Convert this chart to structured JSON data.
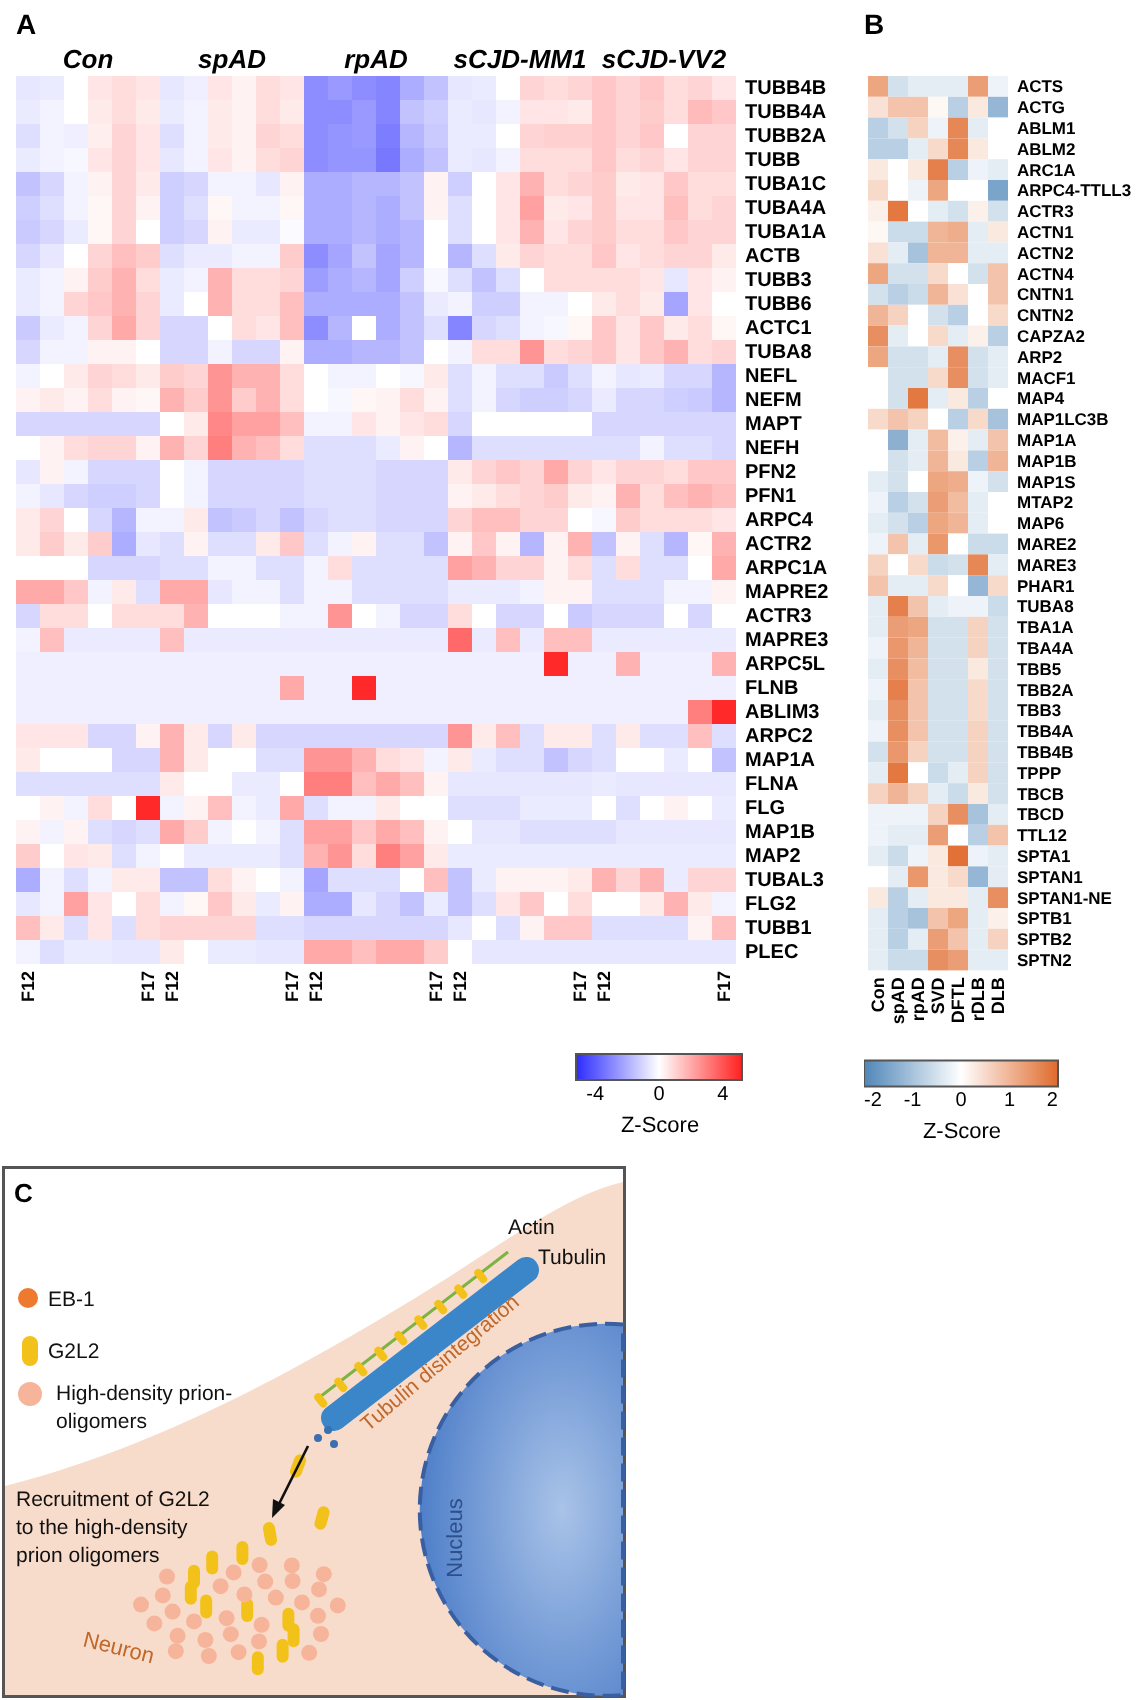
{
  "chart_data": [
    {
      "type": "heatmap",
      "title": "A",
      "annotations": [
        "Con",
        "spAD",
        "rpAD",
        "sCJD-MM1",
        "sCJD-VV2"
      ],
      "categories": [
        "F12",
        null,
        null,
        null,
        null,
        "F17",
        "F12",
        null,
        null,
        null,
        null,
        "F17",
        "F12",
        null,
        null,
        null,
        null,
        "F17",
        "F12",
        null,
        null,
        null,
        null,
        "F17",
        "F12",
        null,
        null,
        null,
        null,
        "F17"
      ],
      "clim": [
        -5.2,
        5.2
      ],
      "clabel": "Z-Score",
      "cticks": [
        -4,
        0,
        4
      ],
      "y_categories": [
        "TUBB4B",
        "TUBB4A",
        "TUBB2A",
        "TUBB",
        "TUBA1C",
        "TUBA4A",
        "TUBA1A",
        "ACTB",
        "TUBB3",
        "TUBB6",
        "ACTC1",
        "TUBA8",
        "NEFL",
        "NEFM",
        "MAPT",
        "NEFH",
        "PFN2",
        "PFN1",
        "ARPC4",
        "ACTR2",
        "ARPC1A",
        "MAPRE2",
        "ACTR3",
        "MAPRE3",
        "ARPC5L",
        "FLNB",
        "ABLIM3",
        "ARPC2",
        "MAP1A",
        "FLNA",
        "FLG",
        "MAP1B",
        "MAP2",
        "TUBAL3",
        "FLG2",
        "TUBB1",
        "PLEC"
      ],
      "cells": [
        [
          -0.6,
          -0.5,
          0,
          0.6,
          0.8,
          0.6,
          -0.6,
          -0.4,
          0.6,
          0.3,
          0.8,
          0.6,
          -2.8,
          -2.5,
          -2.8,
          -3,
          -2,
          -1.5,
          -0.6,
          -0.5,
          0,
          1,
          0.8,
          1,
          1.3,
          1,
          1.3,
          0.8,
          1,
          0.6
        ],
        [
          -0.5,
          -0.3,
          0,
          0.5,
          0.8,
          0.5,
          -0.5,
          -0.3,
          0.5,
          0.3,
          0.8,
          0.5,
          -2.8,
          -2.8,
          -2.5,
          -3,
          -1.5,
          -1.2,
          -0.5,
          -0.6,
          -0.3,
          0.6,
          0.6,
          0.5,
          1.3,
          1,
          1.2,
          0.8,
          1.6,
          1.3
        ],
        [
          -0.8,
          -0.3,
          -0.4,
          0.4,
          1,
          0.6,
          -0.8,
          -0.3,
          0.5,
          0.3,
          1,
          0.8,
          -2.8,
          -2.6,
          -2.5,
          -3.2,
          -1.8,
          -1.3,
          -0.5,
          -0.5,
          0,
          1,
          1.1,
          1.1,
          1.3,
          1,
          1.3,
          0,
          1,
          1
        ],
        [
          -0.5,
          -0.3,
          -0.2,
          0.6,
          1,
          0.6,
          -0.6,
          -0.3,
          0.6,
          0.3,
          0.8,
          1,
          -2.8,
          -2.6,
          -2.6,
          -3.3,
          -2,
          -1.5,
          -0.5,
          -0.6,
          -0.3,
          0.8,
          0.8,
          0.8,
          1.3,
          0.8,
          1,
          0.6,
          1,
          1
        ],
        [
          -1.5,
          -1,
          -0.3,
          0.3,
          1,
          0.5,
          -1.2,
          -1,
          -0.3,
          -0.3,
          -0.6,
          0.3,
          -2,
          -2,
          -1.8,
          -1.8,
          -1.5,
          0.3,
          -1.2,
          0,
          0.6,
          1.8,
          0.8,
          1,
          1.2,
          0.5,
          0.6,
          1.3,
          0.8,
          0.8
        ],
        [
          -1.2,
          -0.8,
          -0.3,
          0.2,
          1,
          0.3,
          -1.2,
          -0.8,
          0.2,
          -0.3,
          -0.3,
          0.2,
          -2,
          -2,
          -1.8,
          -2,
          -1.5,
          0.3,
          -0.8,
          0,
          0.6,
          2.2,
          0.5,
          0.6,
          1.2,
          0.6,
          0.6,
          1.5,
          0.8,
          1
        ],
        [
          -1.3,
          -1,
          -0.5,
          0.2,
          1,
          0,
          -1.2,
          -1,
          0.3,
          -0.5,
          -0.5,
          -0.1,
          -2,
          -2,
          -1.8,
          -2,
          -1.8,
          0,
          -0.8,
          0,
          0.6,
          1.8,
          0.6,
          1,
          1.2,
          0.8,
          0.8,
          1.3,
          1,
          1
        ],
        [
          -1,
          -0.6,
          0,
          1,
          1.5,
          1.2,
          -0.8,
          -0.5,
          -0.5,
          -0.3,
          -0.3,
          1.2,
          -2.8,
          -2.2,
          -1.5,
          -2.2,
          -1.8,
          0,
          -1.8,
          -0.8,
          0.5,
          1,
          0.8,
          0.8,
          1.3,
          0.6,
          0.8,
          1,
          1,
          0.5
        ],
        [
          -0.5,
          -0.3,
          0.3,
          1.2,
          1.8,
          0.8,
          -0.5,
          -0.3,
          1.8,
          0.8,
          0.8,
          1,
          -2.4,
          -2,
          -1.8,
          -2.2,
          -1.2,
          -0.2,
          -0.8,
          -1.5,
          -0.8,
          0,
          0.8,
          0.8,
          0.8,
          0.8,
          0.6,
          -0.6,
          0.6,
          0.3
        ],
        [
          -0.5,
          -0.3,
          1,
          1.3,
          1.8,
          1,
          -0.5,
          0,
          1.8,
          0.8,
          0.8,
          1.5,
          -2,
          -2,
          -2,
          -2,
          -1.5,
          -0.5,
          -0.3,
          -1.2,
          -1.2,
          -0.3,
          -0.3,
          0,
          0.5,
          0.8,
          0.5,
          -2.2,
          0.6,
          0
        ],
        [
          -1.3,
          -0.5,
          -0.3,
          1,
          2,
          1,
          -1,
          -1,
          0,
          0.8,
          0.6,
          1.5,
          -2.8,
          -1.8,
          0,
          -2,
          -1.5,
          -0.8,
          -3,
          -1,
          -0.8,
          -0.3,
          -0.2,
          0.2,
          1.3,
          0.6,
          1.3,
          0.5,
          0.8,
          0.2
        ],
        [
          -1,
          -0.3,
          -0.3,
          0.3,
          0.3,
          0,
          -1,
          -1,
          -0.3,
          -1,
          -1,
          0.3,
          -2,
          -2,
          -1.8,
          -1.8,
          -1.5,
          0,
          -0.3,
          0.8,
          0.8,
          2.5,
          0.8,
          1,
          1.3,
          0.6,
          1.3,
          1.8,
          0.8,
          1
        ],
        [
          -0.3,
          0,
          0.5,
          1,
          0.8,
          0.5,
          1.2,
          1,
          2.5,
          1.8,
          1.8,
          0.8,
          0,
          -0.3,
          -0.3,
          0,
          -0.2,
          0.5,
          -0.8,
          -0.3,
          -0.8,
          -0.8,
          -1.3,
          -0.8,
          -0.3,
          -0.6,
          -0.5,
          -1,
          -1,
          -1.8
        ],
        [
          0.3,
          0.5,
          0.3,
          0.8,
          0.3,
          0.2,
          1.8,
          1.2,
          2.5,
          1.2,
          1.8,
          0.8,
          0,
          -0.2,
          0.2,
          0.3,
          0.8,
          0.3,
          -0.8,
          -0.3,
          -1,
          -1.2,
          -1.2,
          -1,
          -0.5,
          -1,
          -1,
          -1.2,
          -1.3,
          -1.8
        ],
        [
          -1,
          -1,
          -1,
          -1,
          -1,
          -1,
          0,
          0.5,
          2.8,
          2.2,
          2.2,
          1.5,
          -0.3,
          -0.3,
          0.6,
          0.3,
          0.6,
          0.8,
          -1,
          0,
          0,
          0,
          0,
          0,
          -1,
          -1,
          -1,
          -1,
          -1,
          -1
        ],
        [
          0,
          0.3,
          0.8,
          1,
          1,
          0.3,
          1.8,
          1,
          3,
          1.8,
          1.5,
          0.8,
          -0.8,
          -0.8,
          -0.8,
          -0.5,
          0.3,
          0,
          -1.8,
          -0.8,
          -0.8,
          -0.8,
          -0.8,
          -0.8,
          -0.8,
          -0.8,
          -0.3,
          -0.8,
          -0.8,
          -1
        ],
        [
          -0.6,
          0.3,
          -0.3,
          -1,
          -1,
          -1,
          0,
          -0.3,
          -1,
          -1,
          -1,
          -1,
          -0.8,
          -0.8,
          -0.8,
          -1,
          -1,
          -1,
          0.5,
          1,
          1.3,
          1,
          2,
          1,
          0.6,
          1,
          1,
          0.8,
          1.3,
          1.3
        ],
        [
          -0.3,
          -0.6,
          -1,
          -1.2,
          -1.2,
          -1,
          0,
          -0.3,
          -1,
          -1,
          -1,
          -1,
          -0.8,
          -0.8,
          -0.8,
          -1,
          -1,
          -1,
          0.3,
          0.5,
          0.8,
          1,
          1.2,
          0.5,
          0.3,
          1.8,
          0.8,
          1.5,
          1.8,
          1.5
        ],
        [
          0.5,
          1,
          0,
          -1,
          -1.8,
          -0.3,
          -0.3,
          0.5,
          -1.5,
          -1.3,
          -1,
          -1.5,
          -1,
          -0.8,
          -0.8,
          -1,
          -1,
          -1,
          1,
          1.5,
          1.5,
          1,
          1,
          0,
          -0.2,
          1.2,
          0.8,
          0.8,
          0.8,
          0.6
        ],
        [
          0.5,
          1.2,
          0.5,
          1.2,
          -2,
          -0.6,
          -0.8,
          0.3,
          -0.8,
          -0.8,
          0.5,
          1.3,
          -0.8,
          -0.3,
          0.3,
          -0.8,
          -0.8,
          -1.5,
          0.3,
          1.3,
          0.3,
          -1.8,
          0.3,
          1.8,
          -1.5,
          0.3,
          -0.8,
          -1.8,
          0.2,
          1.8
        ],
        [
          0,
          0,
          0,
          -1,
          -1,
          -1,
          -0.8,
          -0.8,
          -0.3,
          -0.3,
          -0.8,
          -0.8,
          -0.3,
          0.8,
          -0.8,
          -0.8,
          -0.8,
          -0.8,
          2.2,
          1.8,
          1,
          1,
          0.3,
          0.8,
          -0.8,
          0.8,
          -0.8,
          -0.8,
          0,
          2
        ],
        [
          2,
          2,
          1.3,
          -0.3,
          0.5,
          -0.8,
          2,
          2,
          -0.6,
          -0.3,
          -0.3,
          -0.8,
          -0.3,
          -0.3,
          -0.8,
          -0.8,
          -0.8,
          -0.8,
          -0.5,
          -0.5,
          -0.5,
          -0.3,
          0.3,
          0.3,
          -0.8,
          -0.8,
          -0.8,
          -0.3,
          -0.3,
          0.3
        ],
        [
          -1,
          0.8,
          0.8,
          0,
          0.8,
          0.8,
          0.8,
          1.8,
          0,
          0,
          0,
          -0.3,
          -0.3,
          2.5,
          0,
          -0.3,
          -1,
          -1,
          0.8,
          0,
          -1,
          -1,
          0,
          -1.3,
          -1,
          -1,
          -1,
          0,
          -1,
          0
        ],
        [
          -0.3,
          1.5,
          -0.5,
          -0.5,
          -0.5,
          -0.5,
          1.5,
          -0.5,
          -0.5,
          -0.5,
          -0.5,
          -0.5,
          -0.5,
          -0.5,
          -0.5,
          -0.5,
          -0.5,
          -0.5,
          3.5,
          -0.5,
          1.5,
          -0.5,
          1.5,
          1.5,
          -0.5,
          -0.5,
          -0.5,
          -0.5,
          -0.5,
          -0.5
        ],
        [
          -0.4,
          -0.4,
          -0.4,
          -0.4,
          -0.4,
          -0.4,
          -0.4,
          -0.4,
          -0.4,
          -0.4,
          -0.4,
          -0.4,
          -0.4,
          -0.4,
          -0.4,
          -0.4,
          -0.4,
          -0.4,
          -0.4,
          -0.4,
          -0.4,
          -0.4,
          5,
          -0.4,
          -0.4,
          1.8,
          -0.4,
          -0.4,
          -0.4,
          1.8
        ],
        [
          -0.4,
          -0.4,
          -0.4,
          -0.4,
          -0.4,
          -0.4,
          -0.4,
          -0.4,
          -0.4,
          -0.4,
          -0.4,
          2,
          -0.4,
          -0.4,
          5,
          -0.4,
          -0.4,
          -0.4,
          -0.4,
          -0.4,
          -0.4,
          -0.4,
          -0.4,
          -0.4,
          -0.4,
          -0.4,
          -0.4,
          -0.4,
          -0.4,
          -0.4
        ],
        [
          -0.4,
          -0.4,
          -0.4,
          -0.4,
          -0.4,
          -0.4,
          -0.4,
          -0.4,
          -0.4,
          -0.4,
          -0.4,
          -0.4,
          -0.4,
          -0.4,
          -0.4,
          -0.4,
          -0.4,
          -0.4,
          -0.4,
          -0.4,
          -0.4,
          -0.4,
          -0.4,
          -0.4,
          -0.4,
          -0.4,
          -0.4,
          -0.4,
          3,
          5
        ],
        [
          0.6,
          0.6,
          0.6,
          -1,
          -1,
          0.3,
          1.8,
          0.5,
          -1,
          0.5,
          -1,
          -1,
          -1,
          -1,
          -1,
          -1,
          -1,
          -1,
          2.5,
          0.5,
          1.5,
          -0.8,
          0.5,
          0.5,
          -0.8,
          0.5,
          -0.8,
          -0.8,
          1.5,
          -0.8
        ],
        [
          0.5,
          0,
          0,
          0,
          -1,
          -1,
          1.8,
          0.5,
          0,
          0,
          -0.8,
          -0.8,
          2.5,
          2.5,
          1.8,
          0.8,
          0.6,
          -0.3,
          0.5,
          -0.5,
          -0.8,
          -0.8,
          -1.5,
          -1,
          -0.8,
          0,
          0,
          -0.5,
          0,
          -1.5
        ],
        [
          -0.8,
          -0.8,
          -0.8,
          -0.8,
          -0.8,
          -0.8,
          0.5,
          0,
          0,
          -0.5,
          -0.5,
          0,
          3,
          3,
          1.5,
          2,
          1.5,
          0.3,
          -0.6,
          -0.6,
          -0.6,
          -0.6,
          -0.6,
          -0.6,
          -0.5,
          -0.6,
          -0.6,
          -0.6,
          -0.6,
          -0.6
        ],
        [
          0,
          0.3,
          -0.3,
          0.8,
          0,
          5,
          -0.3,
          0.3,
          1.5,
          -0.3,
          -0.5,
          2,
          -0.8,
          -0.3,
          -0.3,
          0.5,
          0,
          0,
          -0.8,
          -0.8,
          -0.8,
          -0.5,
          -0.5,
          -0.5,
          0,
          -0.8,
          0,
          0.3,
          0,
          -0.5
        ],
        [
          0.3,
          -0.3,
          0.3,
          -0.8,
          -1,
          -0.8,
          2,
          1.2,
          -0.3,
          0,
          -0.3,
          -0.8,
          2.2,
          2.2,
          1.3,
          2,
          1.5,
          0.3,
          0,
          -0.6,
          -0.6,
          -0.8,
          -0.8,
          -0.8,
          -0.8,
          -0.6,
          -0.6,
          -0.6,
          -0.6,
          -0.6
        ],
        [
          1.2,
          0,
          0.6,
          0.5,
          -0.8,
          -0.3,
          0,
          -0.5,
          -0.5,
          -0.5,
          -0.5,
          -0.8,
          1.8,
          2.5,
          0.8,
          3,
          2.2,
          0.5,
          -0.5,
          -0.5,
          -0.5,
          -0.5,
          -0.5,
          -0.5,
          -0.5,
          -0.5,
          -0.5,
          -0.5,
          -0.5,
          -0.5
        ],
        [
          -2,
          -0.3,
          -0.8,
          -0.3,
          0.5,
          0.5,
          -1.5,
          -1.5,
          0.8,
          0.3,
          0,
          -0.3,
          -2.2,
          -0.8,
          -0.8,
          -0.8,
          0,
          1.5,
          -1.5,
          -0.5,
          0.3,
          0.3,
          0.3,
          0.5,
          1.8,
          1,
          1.8,
          -0.5,
          1,
          1
        ],
        [
          -0.6,
          -0.3,
          2.2,
          0.6,
          0,
          0.8,
          -0.3,
          0.2,
          1.3,
          0.5,
          -0.5,
          0.3,
          -2,
          -2,
          -0.6,
          -1,
          -1.5,
          -0.5,
          -1.5,
          -0.8,
          0.6,
          1.3,
          0,
          0.8,
          0,
          0,
          0.5,
          1.8,
          0.5,
          -0.3
        ],
        [
          1.5,
          0.5,
          -0.8,
          0.6,
          -0.8,
          0.8,
          1,
          1,
          1,
          1,
          -0.8,
          -0.8,
          -1,
          -1,
          -1,
          -1,
          -1,
          -1,
          -0.6,
          0,
          -0.8,
          0.3,
          1.3,
          1.3,
          -0.8,
          -0.8,
          -0.8,
          -0.8,
          0.3,
          1.5
        ],
        [
          -0.3,
          -0.8,
          -0.5,
          -0.5,
          -0.6,
          -0.6,
          0.5,
          0,
          -0.5,
          -0.5,
          -0.6,
          -0.6,
          2,
          2,
          1.5,
          2,
          2,
          1.2,
          0,
          -0.6,
          -0.6,
          -0.6,
          -0.6,
          -0.6,
          -0.6,
          -0.6,
          -0.6,
          -0.6,
          -0.6,
          -0.6
        ]
      ]
    },
    {
      "type": "heatmap",
      "title": "B",
      "categories": [
        "Con",
        "spAD",
        "rpAD",
        "SVD",
        "DFTL",
        "rDLB",
        "DLB"
      ],
      "clim": [
        -2,
        2
      ],
      "clabel": "Z-Score",
      "cticks": [
        -2,
        -1,
        0,
        1,
        2
      ],
      "y_categories": [
        "ACTS",
        "ACTG",
        "ABLM1",
        "ABLM2",
        "ARC1A",
        "ARPC4-TTLL3",
        "ACTR3",
        "ACTN1",
        "ACTN2",
        "ACTN4",
        "CNTN1",
        "CNTN2",
        "CAPZA2",
        "ARP2",
        "MACF1",
        "MAP4",
        "MAP1LC3B",
        "MAP1A",
        "MAP1B",
        "MAP1S",
        "MTAP2",
        "MAP6",
        "MARE2",
        "MARE3",
        "PHAR1",
        "TUBA8",
        "TBA1A",
        "TBA4A",
        "TBB5",
        "TBB2A",
        "TBB3",
        "TBB4A",
        "TBB4B",
        "TPPP",
        "TBCB",
        "TBCD",
        "TTL12",
        "SPTA1",
        "SPTAN1",
        "SPTAN1-NE",
        "SPTB1",
        "SPTB2",
        "SPTN2"
      ],
      "cells": [
        [
          1.2,
          -0.5,
          -0.3,
          -0.3,
          -0.3,
          1.3,
          -0.2
        ],
        [
          0.4,
          0.8,
          0.8,
          0.1,
          -0.8,
          0.3,
          -1.2
        ],
        [
          -0.8,
          -0.5,
          0.6,
          -0.2,
          1.6,
          -0.3,
          0
        ],
        [
          -0.8,
          -0.8,
          -0.3,
          0.5,
          1.6,
          0.3,
          0
        ],
        [
          0.3,
          0,
          0.3,
          1.7,
          -0.8,
          -0.2,
          -0.3
        ],
        [
          0.5,
          0,
          -0.2,
          1.2,
          0,
          0,
          -1.5
        ],
        [
          0.2,
          1.8,
          0,
          -0.3,
          -0.5,
          0.2,
          -0.5
        ],
        [
          0.1,
          -0.6,
          -0.6,
          1,
          1.1,
          -0.3,
          0.3
        ],
        [
          0.4,
          -0.3,
          -1,
          1,
          1,
          -0.3,
          -0.3
        ],
        [
          1.2,
          -0.5,
          -0.5,
          0.5,
          0,
          -0.5,
          0.8
        ],
        [
          -0.5,
          -0.8,
          -0.6,
          1,
          0.4,
          0,
          0.8
        ],
        [
          1,
          0.6,
          0,
          -0.5,
          -0.8,
          0,
          0.5
        ],
        [
          1.5,
          -0.3,
          0,
          0.5,
          -0.3,
          0.2,
          -0.8
        ],
        [
          1.2,
          -0.5,
          -0.5,
          -0.3,
          1.5,
          -0.5,
          -0.3
        ],
        [
          0,
          -0.5,
          -0.5,
          0.5,
          1.5,
          -0.5,
          -0.3
        ],
        [
          0,
          -0.5,
          1.8,
          -0.3,
          0.3,
          -0.8,
          0
        ],
        [
          0.5,
          0.8,
          0.6,
          0,
          -0.8,
          0.5,
          -1
        ],
        [
          0,
          -1.3,
          -0.3,
          0.9,
          0.2,
          -0.3,
          0.8
        ],
        [
          0,
          -0.5,
          -0.3,
          1,
          0.3,
          -0.8,
          1
        ],
        [
          -0.3,
          -0.5,
          0,
          1.2,
          1.1,
          -0.2,
          -0.5
        ],
        [
          -0.2,
          -0.8,
          -0.5,
          1.3,
          0.9,
          -0.3,
          0
        ],
        [
          -0.3,
          -0.5,
          -0.8,
          1.2,
          1,
          -0.3,
          0
        ],
        [
          -0.2,
          0.8,
          -0.3,
          1.4,
          0,
          -0.6,
          -0.6
        ],
        [
          0.6,
          0,
          0.5,
          -0.6,
          -0.5,
          1.6,
          -0.3
        ],
        [
          0.8,
          -0.3,
          -0.3,
          0.5,
          0,
          -1.2,
          0.5
        ],
        [
          -0.3,
          1.7,
          0.8,
          -0.3,
          -0.2,
          -0.2,
          -0.6
        ],
        [
          -0.3,
          1.3,
          1.2,
          -0.5,
          -0.5,
          0.6,
          -0.5
        ],
        [
          -0.2,
          1.4,
          1,
          -0.5,
          -0.5,
          0.6,
          -0.5
        ],
        [
          -0.3,
          1.5,
          0.9,
          -0.5,
          -0.5,
          0.3,
          -0.5
        ],
        [
          -0.2,
          1.7,
          0.8,
          -0.5,
          -0.5,
          0.5,
          -0.5
        ],
        [
          -0.3,
          1.5,
          0.8,
          -0.5,
          -0.5,
          0.5,
          -0.5
        ],
        [
          -0.2,
          1.5,
          0.8,
          -0.5,
          -0.5,
          0.6,
          -0.5
        ],
        [
          -0.5,
          1.4,
          0.6,
          -0.5,
          -0.5,
          0.6,
          -0.5
        ],
        [
          -0.3,
          1.8,
          0,
          -0.6,
          -0.3,
          0.6,
          -0.5
        ],
        [
          0.6,
          1,
          0.6,
          -0.3,
          -0.6,
          0.3,
          -0.5
        ],
        [
          -0.2,
          -0.2,
          -0.2,
          0.6,
          1.5,
          -1,
          -0.3
        ],
        [
          -0.2,
          -0.3,
          -0.3,
          1.3,
          0,
          -0.8,
          0.8
        ],
        [
          -0.3,
          -0.6,
          -0.2,
          0.3,
          1.9,
          -0.2,
          -0.3
        ],
        [
          0,
          -0.3,
          1.4,
          0.3,
          0.5,
          -1.2,
          -0.3
        ],
        [
          0.3,
          -0.8,
          -0.3,
          0.3,
          0.3,
          -0.3,
          1.5
        ],
        [
          -0.3,
          -0.8,
          -1,
          0.8,
          1.2,
          -0.3,
          0.2
        ],
        [
          -0.3,
          -0.8,
          -0.3,
          1.3,
          0.8,
          -0.3,
          0.6
        ],
        [
          -0.3,
          -0.6,
          -0.6,
          1.5,
          1.3,
          -0.3,
          -0.3
        ]
      ]
    },
    {
      "type": "other",
      "title": "C",
      "annotations": [
        "Actin",
        "Tubulin",
        "EB-1",
        "G2L2",
        "High-density prion-oligomers",
        "Tubulin disintegration",
        "Recruitment of G2L2 to the high-density prion oligomers",
        "Nucleus",
        "Neuron"
      ]
    }
  ]
}
